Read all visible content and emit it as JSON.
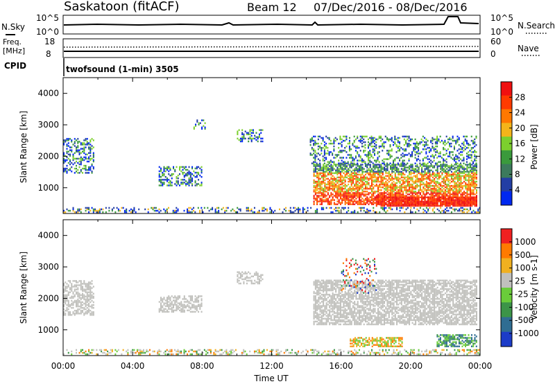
{
  "header": {
    "station": "Saskatoon (fitACF)",
    "beam": "Beam 12",
    "dates": "07/Dec/2016 - 08/Dec/2016"
  },
  "top_panels": {
    "nsky_label": "N.Sky",
    "nsky_ticks": [
      "10^5",
      "10^0"
    ],
    "nsearch_label": "N.Search",
    "nsearch_ticks": [
      "10^5",
      "10^0"
    ],
    "freq_label": "Freq.",
    "freq_unit": "[MHz]",
    "freq_ticks": [
      "18",
      "8"
    ],
    "nave_label": "Nave",
    "nave_ticks": [
      "60",
      "0"
    ],
    "cpid_label": "CPID",
    "cpid_value": "twofsound (1-min) 3505"
  },
  "chart_data": [
    {
      "type": "heatmap",
      "name": "power",
      "ylabel": "Slant Range [km]",
      "ylim": [
        180,
        4500
      ],
      "yticks": [
        "4000",
        "3000",
        "2000",
        "1000"
      ],
      "xlim": [
        0,
        24
      ],
      "colorbar_label": "Power [dB]",
      "colorbar_ticks": [
        "28",
        "24",
        "20",
        "16",
        "12",
        "8",
        "4"
      ],
      "colors": [
        "#0028f0",
        "#233ea4",
        "#3c7a5c",
        "#3a9a3c",
        "#7ccf2e",
        "#f4b41a",
        "#ff7800",
        "#ff3a00",
        "#f01010"
      ]
    },
    {
      "type": "heatmap",
      "name": "velocity",
      "ylabel": "Slant Range [km]",
      "ylim": [
        180,
        4500
      ],
      "yticks": [
        "4000",
        "3000",
        "2000",
        "1000"
      ],
      "xlim": [
        0,
        24
      ],
      "colorbar_label": "Velocity [m s-1]",
      "colorbar_ticks": [
        "1000",
        "500",
        "100",
        "25",
        "-25",
        "-100",
        "-500",
        "-1000"
      ],
      "colors": [
        "#1c3cc8",
        "#2f6d92",
        "#3c9448",
        "#6acc3a",
        "#c0c0bc",
        "#f0b020",
        "#ff7a00",
        "#f02020"
      ],
      "ground_scatter_color": "#c0c0bc"
    }
  ],
  "xaxis": {
    "tick_labels": [
      "00:00",
      "04:00",
      "08:00",
      "12:00",
      "16:00",
      "20:00",
      "00:00"
    ],
    "xlabel": "Time UT"
  }
}
